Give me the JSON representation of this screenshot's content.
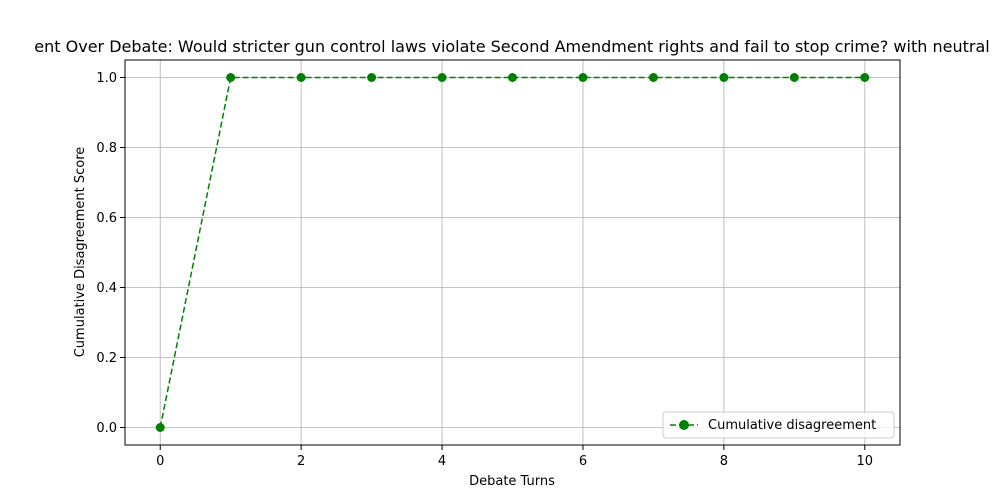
{
  "chart_data": {
    "type": "line",
    "title": "ent Over Debate: Would stricter gun control laws violate Second Amendment rights and fail to stop crime? with neutral",
    "xlabel": "Debate Turns",
    "ylabel": "Cumulative Disagreement Score",
    "x": [
      0,
      1,
      2,
      3,
      4,
      5,
      6,
      7,
      8,
      9,
      10
    ],
    "series": [
      {
        "name": "Cumulative disagreement",
        "values": [
          0,
          1,
          1,
          1,
          1,
          1,
          1,
          1,
          1,
          1,
          1
        ],
        "color": "#008000",
        "line_style": "dashed",
        "marker": "circle"
      }
    ],
    "xlim": [
      -0.5,
      10.5
    ],
    "ylim": [
      -0.05,
      1.05
    ],
    "xticks": [
      0,
      2,
      4,
      6,
      8,
      10
    ],
    "yticks": [
      0.0,
      0.2,
      0.4,
      0.6,
      0.8,
      1.0
    ],
    "xtick_labels": [
      "0",
      "2",
      "4",
      "6",
      "8",
      "10"
    ],
    "ytick_labels": [
      "0.0",
      "0.2",
      "0.4",
      "0.6",
      "0.8",
      "1.0"
    ],
    "grid": true,
    "legend_position": "bottom-right"
  }
}
